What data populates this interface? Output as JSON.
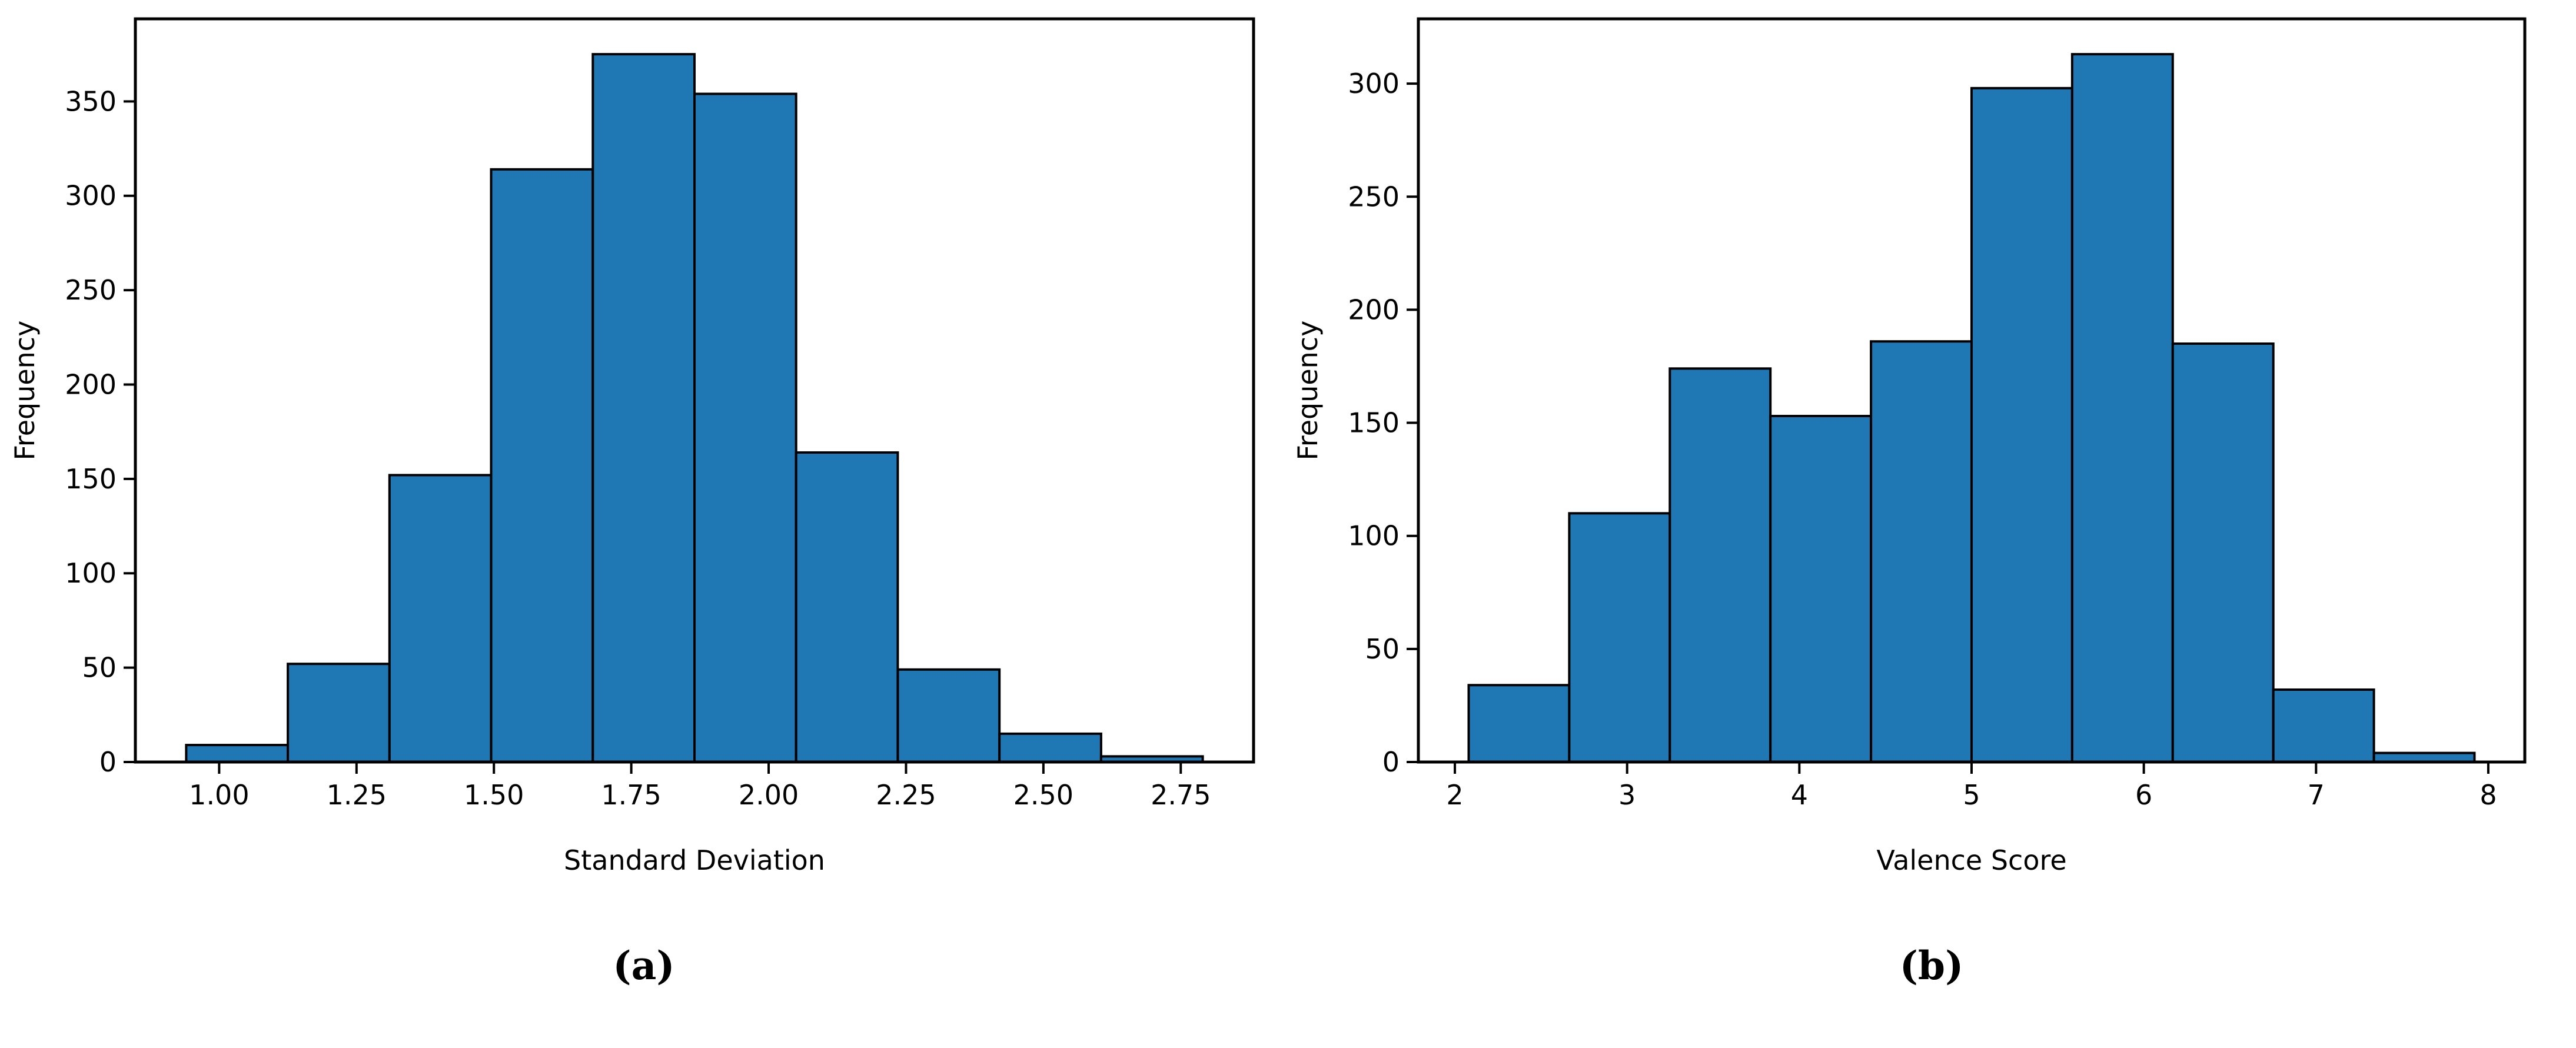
{
  "style": {
    "background": "#ffffff",
    "bar_fill": "#1f77b4",
    "bar_edge": "#000000",
    "spine_color": "#000000",
    "text_color": "#000000"
  },
  "chart_data": [
    {
      "type": "bar",
      "subtype": "histogram",
      "caption": "(a)",
      "xlabel": "Standard Deviation",
      "ylabel": "Frequency",
      "bin_start": 0.94,
      "bin_width": 0.185,
      "bin_edges": [
        0.94,
        1.125,
        1.31,
        1.495,
        1.68,
        1.865,
        2.05,
        2.235,
        2.42,
        2.605,
        2.79
      ],
      "values": [
        9,
        52,
        152,
        314,
        375,
        354,
        164,
        49,
        15,
        3
      ],
      "xticks": [
        1.0,
        1.25,
        1.5,
        1.75,
        2.0,
        2.25,
        2.5,
        2.75
      ],
      "xtick_labels": [
        "1.00",
        "1.25",
        "1.50",
        "1.75",
        "2.00",
        "2.25",
        "2.50",
        "2.75"
      ],
      "yticks": [
        0,
        50,
        100,
        150,
        200,
        250,
        300,
        350
      ],
      "ytick_labels": [
        "0",
        "50",
        "100",
        "150",
        "200",
        "250",
        "300",
        "350"
      ],
      "xlim": [
        0.8475,
        2.8825
      ],
      "ylim": [
        0,
        393.75
      ],
      "grid": false,
      "legend": null
    },
    {
      "type": "bar",
      "subtype": "histogram",
      "caption": "(b)",
      "xlabel": "Valence Score",
      "ylabel": "Frequency",
      "bin_start": 2.08,
      "bin_width": 0.584,
      "bin_edges": [
        2.08,
        2.664,
        3.248,
        3.832,
        4.416,
        5.0,
        5.584,
        6.168,
        6.752,
        7.336,
        7.92
      ],
      "values": [
        34,
        110,
        174,
        153,
        186,
        298,
        313,
        185,
        32,
        4
      ],
      "xticks": [
        2,
        3,
        4,
        5,
        6,
        7,
        8
      ],
      "xtick_labels": [
        "2",
        "3",
        "4",
        "5",
        "6",
        "7",
        "8"
      ],
      "yticks": [
        0,
        50,
        100,
        150,
        200,
        250,
        300
      ],
      "ytick_labels": [
        "0",
        "50",
        "100",
        "150",
        "200",
        "250",
        "300"
      ],
      "xlim": [
        1.788,
        8.212
      ],
      "ylim": [
        0,
        328.65
      ],
      "grid": false,
      "legend": null
    }
  ]
}
